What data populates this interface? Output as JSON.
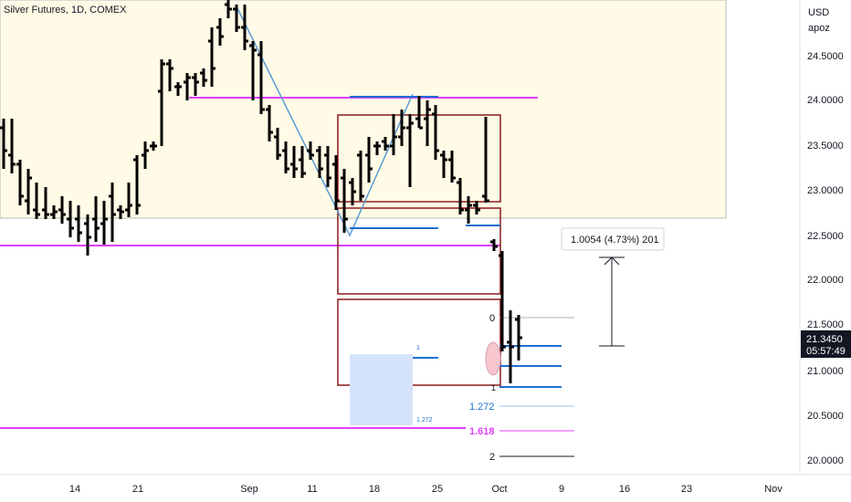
{
  "header": {
    "title": "Silver Futures, 1D, COMEX"
  },
  "price_scale": {
    "currency": "USD",
    "user": "apoz",
    "labels": [
      "24.5000",
      "24.0000",
      "23.5000",
      "23.0000",
      "22.5000",
      "22.0000",
      "21.5000",
      "21.0000",
      "20.5000",
      "20.0000"
    ],
    "current_price": "21.3450",
    "countdown": "05:57:49"
  },
  "time_scale": {
    "labels": [
      "14",
      "21",
      "Sep",
      "11",
      "18",
      "25",
      "Oct",
      "9",
      "16",
      "23",
      "Nov"
    ]
  },
  "measure": {
    "text": "1.0054 (4.73%) 201"
  },
  "fib": {
    "levels": [
      "0",
      "1",
      "1.272",
      "1.618",
      "2"
    ],
    "small_labels": [
      "1",
      "1.272"
    ]
  },
  "colors": {
    "zone_fill": "#fffbe6",
    "magenta": "#e040fb",
    "box_stroke": "#8b1a1a",
    "blue_line": "#2962ff",
    "fib_blue": "#1e6fd0",
    "price_tag": "#131722"
  },
  "chart_data": {
    "type": "ohlc",
    "symbol": "Silver Futures",
    "interval": "1D",
    "exchange": "COMEX",
    "ylim": [
      19.8,
      25.0
    ],
    "last_price": 21.345,
    "horizontal_levels": [
      24.0,
      22.37,
      20.33
    ]
  }
}
